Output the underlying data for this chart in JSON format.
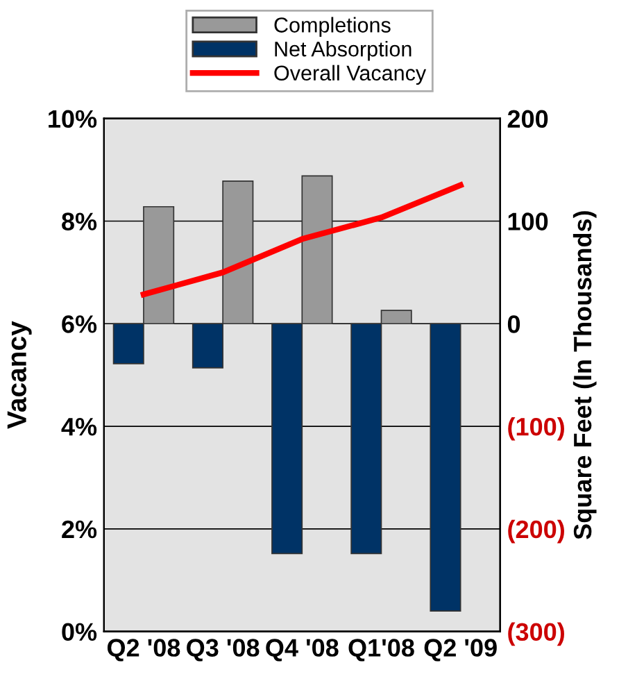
{
  "chart_data": {
    "type": "bar",
    "categories": [
      "Q2 '08",
      "Q3 '08",
      "Q4 '08",
      "Q1'08",
      "Q2 '09"
    ],
    "series": [
      {
        "name": "Net Absorption",
        "color": "#003366",
        "values": [
          -39,
          -43,
          -224,
          -224,
          -280
        ],
        "axis": "y2"
      },
      {
        "name": "Completions",
        "color": "#999999",
        "values": [
          114,
          139,
          144,
          13,
          null
        ],
        "axis": "y2"
      },
      {
        "name": "Overall Vacancy",
        "type": "line",
        "color": "#ff0000",
        "values": [
          6.57,
          7.0,
          7.65,
          8.07,
          8.7
        ]
      }
    ],
    "ylabel": "Vacancy",
    "y2label": "Square Feet (In Thousands)",
    "ylim": [
      0,
      10
    ],
    "yticks": [
      {
        "value": 0,
        "label": "0%"
      },
      {
        "value": 2,
        "label": "2%"
      },
      {
        "value": 4,
        "label": "4%"
      },
      {
        "value": 6,
        "label": "6%"
      },
      {
        "value": 8,
        "label": "8%"
      },
      {
        "value": 10,
        "label": "10%"
      }
    ],
    "y2lim": [
      -300,
      200
    ],
    "y2ticks": [
      {
        "value": -300,
        "label": "(300)"
      },
      {
        "value": -200,
        "label": "(200)"
      },
      {
        "value": -100,
        "label": "(100)"
      },
      0,
      100,
      200
    ],
    "grid": "y",
    "legend": "top",
    "marker": "none"
  }
}
